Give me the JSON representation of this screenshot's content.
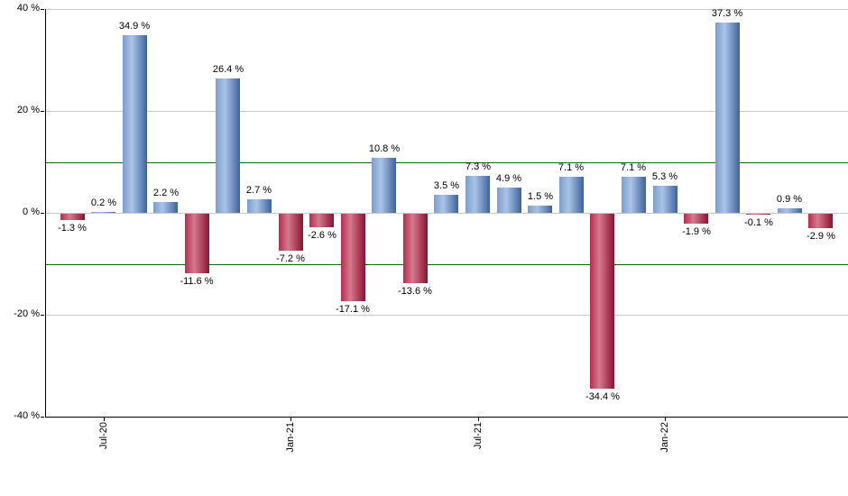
{
  "chart_data": {
    "type": "bar",
    "title": "",
    "xlabel": "",
    "ylabel": "",
    "ylim": [
      -40,
      40
    ],
    "grid": true,
    "legend": "none",
    "values": [
      -1.3,
      0.2,
      34.9,
      2.2,
      -11.6,
      26.4,
      2.7,
      -7.2,
      -2.6,
      -17.1,
      10.8,
      -13.6,
      3.5,
      7.3,
      4.9,
      1.5,
      7.1,
      -34.4,
      7.1,
      5.3,
      -1.9,
      37.3,
      -0.1,
      0.9,
      -2.9
    ],
    "bar_labels": [
      "-1.3 %",
      "0.2 %",
      "34.9 %",
      "2.2 %",
      "-11.6 %",
      "26.4 %",
      "2.7 %",
      "-7.2 %",
      "-2.6 %",
      "-17.1 %",
      "10.8 %",
      "-13.6 %",
      "3.5 %",
      "7.3 %",
      "4.9 %",
      "1.5 %",
      "7.1 %",
      "-34.4 %",
      "7.1 %",
      "5.3 %",
      "-1.9 %",
      "37.3 %",
      "-0.1 %",
      "0.9 %",
      "-2.9 %"
    ],
    "y_ticks": [
      {
        "value": 40,
        "label": "40 %"
      },
      {
        "value": 20,
        "label": "20 %"
      },
      {
        "value": 0,
        "label": "0 %"
      },
      {
        "value": -20,
        "label": "-20 %"
      },
      {
        "value": -40,
        "label": "-40 %"
      }
    ],
    "x_ticks": [
      {
        "bar_index": 1,
        "label": "Jul-20"
      },
      {
        "bar_index": 7,
        "label": "Jan-21"
      },
      {
        "bar_index": 13,
        "label": "Jul-21"
      },
      {
        "bar_index": 19,
        "label": "Jan-22"
      }
    ],
    "threshold_lines": {
      "values": [
        10,
        -10
      ],
      "color": "#007000"
    },
    "colors": {
      "positive_bar_gradient": [
        "#7b9dcc",
        "#aac4e8",
        "#3f639b"
      ],
      "negative_bar_gradient": [
        "#b62c50",
        "#d5798f",
        "#8b1331"
      ],
      "gridline": "#c9c9c9",
      "axis": "#000000",
      "label_text": "#000000"
    }
  }
}
